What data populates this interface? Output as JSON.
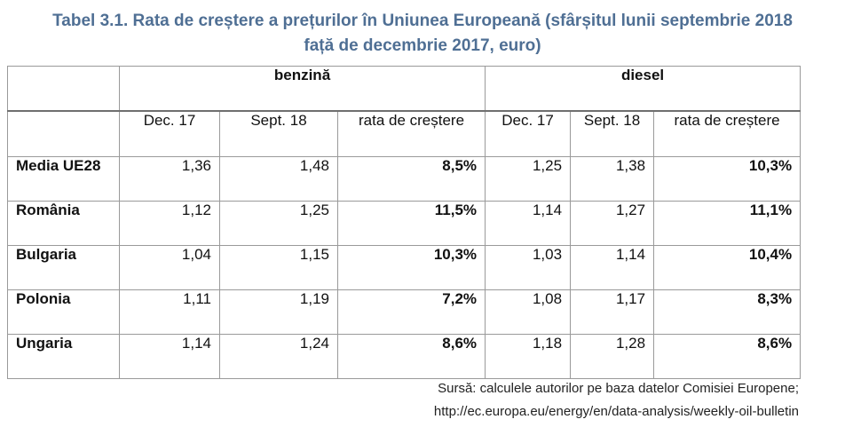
{
  "title": {
    "line1": "Tabel 3.1. Rata de creștere a prețurilor în Uniunea Europeană (sfârșitul lunii septembrie 2018",
    "line2": "față de decembrie 2017, euro)"
  },
  "table": {
    "groups": [
      "benzină",
      "diesel"
    ],
    "subheaders": [
      "Dec. 17",
      "Sept. 18",
      "rata de creștere",
      "Dec. 17",
      "Sept. 18",
      "rata de creștere"
    ],
    "rows": [
      {
        "country": "Media UE28",
        "values": [
          "1,36",
          "1,48",
          "8,5%",
          "1,25",
          "1,38",
          "10,3%"
        ]
      },
      {
        "country": "România",
        "values": [
          "1,12",
          "1,25",
          "11,5%",
          "1,14",
          "1,27",
          "11,1%"
        ]
      },
      {
        "country": "Bulgaria",
        "values": [
          "1,04",
          "1,15",
          "10,3%",
          "1,03",
          "1,14",
          "10,4%"
        ]
      },
      {
        "country": "Polonia",
        "values": [
          "1,11",
          "1,19",
          "7,2%",
          "1,08",
          "1,17",
          "8,3%"
        ]
      },
      {
        "country": "Ungaria",
        "values": [
          "1,14",
          "1,24",
          "8,6%",
          "1,18",
          "1,28",
          "8,6%"
        ]
      }
    ]
  },
  "source": {
    "line1": "Sursă: calculele autorilor pe baza datelor Comisiei Europene;",
    "line2": "http://ec.europa.eu/energy/en/data-analysis/weekly-oil-bulletin"
  }
}
